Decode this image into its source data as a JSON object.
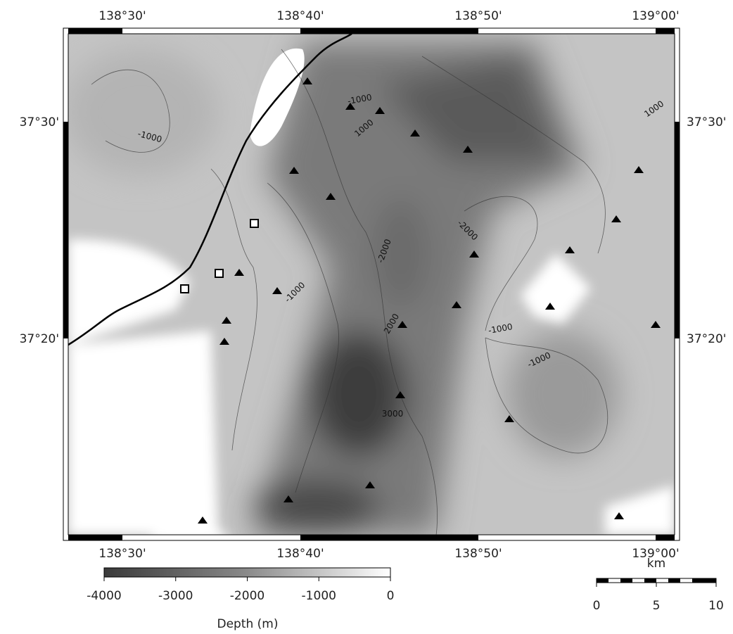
{
  "map": {
    "top_lon_labels": [
      "138°30'",
      "138°40'",
      "138°50'",
      "139°00'"
    ],
    "bottom_lon_labels": [
      "138°30'",
      "138°40'",
      "138°50'",
      "139°00'"
    ],
    "left_lat_labels": [
      "37°30'",
      "37°20'"
    ],
    "right_lat_labels": [
      "37°30'",
      "37°20'"
    ],
    "contour_labels": [
      "-1000",
      "1000",
      "-1000",
      "1000",
      "-2000",
      "-2000",
      "-1000",
      "2000",
      "-1000",
      "-1000",
      "3000"
    ]
  },
  "colorbar": {
    "ticks": [
      -4000,
      -3000,
      -2000,
      -1000,
      0
    ],
    "label": "Depth (m)"
  },
  "scale_bar": {
    "unit": "km",
    "ticks": [
      0,
      5,
      10
    ]
  }
}
